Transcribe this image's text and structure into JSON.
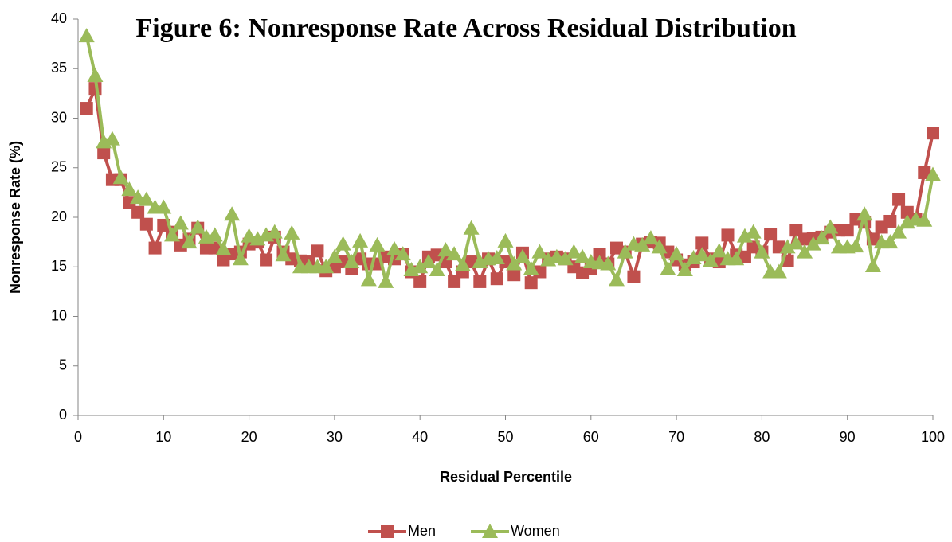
{
  "chart_data": {
    "type": "line",
    "title": "Figure 6: Nonresponse Rate Across Residual Distribution",
    "x_label": "Residual Percentile",
    "y_label": "Nonresponse Rate (%)",
    "x": [
      1,
      2,
      3,
      4,
      5,
      6,
      7,
      8,
      9,
      10,
      11,
      12,
      13,
      14,
      15,
      16,
      17,
      18,
      19,
      20,
      21,
      22,
      23,
      24,
      25,
      26,
      27,
      28,
      29,
      30,
      31,
      32,
      33,
      34,
      35,
      36,
      37,
      38,
      39,
      40,
      41,
      42,
      43,
      44,
      45,
      46,
      47,
      48,
      49,
      50,
      51,
      52,
      53,
      54,
      55,
      56,
      57,
      58,
      59,
      60,
      61,
      62,
      63,
      64,
      65,
      66,
      67,
      68,
      69,
      70,
      71,
      72,
      73,
      74,
      75,
      76,
      77,
      78,
      79,
      80,
      81,
      82,
      83,
      84,
      85,
      86,
      87,
      88,
      89,
      90,
      91,
      92,
      93,
      94,
      95,
      96,
      97,
      98,
      99,
      100
    ],
    "series": [
      {
        "name": "Men",
        "color": "#c0504d",
        "marker": "square",
        "values": [
          31,
          33,
          26.5,
          23.8,
          23.8,
          21.5,
          20.5,
          19.3,
          16.9,
          19.2,
          18.5,
          17.2,
          17.8,
          18.9,
          16.9,
          16.9,
          15.7,
          16.3,
          16.5,
          17.3,
          17.5,
          15.7,
          18,
          16.5,
          15.8,
          15.6,
          15.5,
          16.6,
          14.6,
          15,
          15.5,
          14.8,
          15.8,
          15.3,
          15.3,
          16,
          15.8,
          16.3,
          14.5,
          13.5,
          16,
          16.2,
          15.5,
          13.5,
          14.5,
          15.5,
          13.5,
          15.8,
          13.8,
          15.5,
          14.2,
          16.4,
          13.4,
          14.5,
          15.8,
          16,
          15.8,
          15,
          14.4,
          14.8,
          16.3,
          15.3,
          16.9,
          16.5,
          14,
          17.3,
          17.5,
          17.4,
          16.5,
          15.7,
          15.2,
          15.5,
          17.4,
          15.8,
          15.5,
          18.2,
          16.2,
          16,
          17,
          16.5,
          18.3,
          17,
          15.6,
          18.7,
          17.8,
          17.9,
          18,
          18.5,
          18.7,
          18.7,
          19.8,
          19.5,
          17.8,
          19,
          19.6,
          21.8,
          20.5,
          19.8,
          24.5,
          28.5
        ]
      },
      {
        "name": "Women",
        "color": "#9bbb59",
        "marker": "triangle",
        "values": [
          38.3,
          34.3,
          27.6,
          27.9,
          24,
          22.8,
          22,
          21.8,
          21,
          21,
          18.2,
          19.4,
          17.5,
          19,
          18,
          18.2,
          16.8,
          20.3,
          15.8,
          18.1,
          17.8,
          18.2,
          18.5,
          16.2,
          18.4,
          15,
          15,
          15,
          15,
          16,
          17.3,
          15.5,
          17.6,
          13.7,
          17.2,
          13.5,
          16.8,
          16.3,
          14.7,
          15,
          15.5,
          14.7,
          16.7,
          16.3,
          15.2,
          18.9,
          15.5,
          15.8,
          15.9,
          17.6,
          15.3,
          16,
          14.8,
          16.5,
          15.7,
          16,
          15.8,
          16.5,
          16,
          15.5,
          15.4,
          15.3,
          13.7,
          16.5,
          17.3,
          17.2,
          17.9,
          17,
          14.8,
          16.3,
          14.7,
          15.9,
          16.2,
          15.6,
          16.6,
          15.8,
          15.8,
          18.1,
          18.5,
          16.5,
          14.5,
          14.5,
          17,
          17.4,
          16.5,
          17.3,
          17.9,
          19,
          17,
          17,
          17.1,
          20.3,
          15.1,
          17.5,
          17.5,
          18.5,
          19.5,
          19.8,
          19.7,
          24.3
        ]
      }
    ],
    "xlim": [
      0,
      100
    ],
    "xticks": [
      0,
      10,
      20,
      30,
      40,
      50,
      60,
      70,
      80,
      90,
      100
    ],
    "ylim": [
      0,
      40
    ],
    "yticks": [
      0,
      5,
      10,
      15,
      20,
      25,
      30,
      35,
      40
    ],
    "grid": false,
    "legend": "bottom"
  }
}
